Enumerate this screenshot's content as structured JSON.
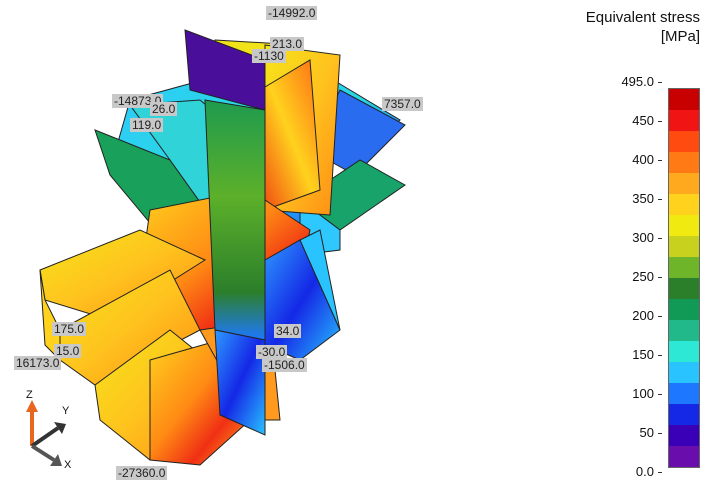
{
  "legend": {
    "title_line1": "Equivalent stress",
    "title_line2": "[MPa]",
    "ticks": [
      "495.0",
      "450",
      "400",
      "350",
      "300",
      "250",
      "200",
      "150",
      "100",
      "50",
      "0.0"
    ],
    "colors": [
      "#6a0dad",
      "#3a00b8",
      "#1428e6",
      "#1e78ff",
      "#29c3ff",
      "#2de8d4",
      "#22b98a",
      "#119a56",
      "#2c7f2a",
      "#6fb52a",
      "#c8d21e",
      "#f0ea10",
      "#ffd21e",
      "#ffaa1e",
      "#ff7a14",
      "#ff4a10",
      "#f01414",
      "#c80000"
    ]
  },
  "annotations": [
    {
      "id": "a1",
      "text": "-14992.0"
    },
    {
      "id": "a2",
      "text": "213.0"
    },
    {
      "id": "a3",
      "text": "-1130"
    },
    {
      "id": "a4",
      "text": "-14873.0"
    },
    {
      "id": "a5",
      "text": "26.0"
    },
    {
      "id": "a6",
      "text": "119.0"
    },
    {
      "id": "a7",
      "text": "7357.0"
    },
    {
      "id": "a8",
      "text": "175.0"
    },
    {
      "id": "a9",
      "text": "15.0"
    },
    {
      "id": "a10",
      "text": "16173.0"
    },
    {
      "id": "a11",
      "text": "34.0"
    },
    {
      "id": "a12",
      "text": "-30.0"
    },
    {
      "id": "a13",
      "text": "-1506.0"
    },
    {
      "id": "a14",
      "text": "-27360.0"
    }
  ],
  "triad": {
    "z": "Z",
    "y": "Y",
    "x": "X"
  }
}
